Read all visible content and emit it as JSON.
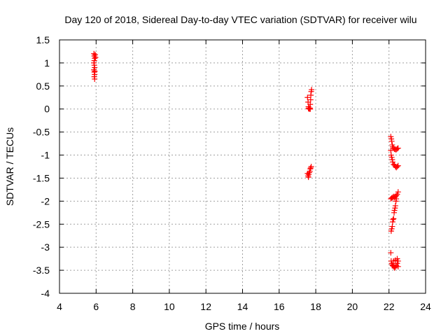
{
  "chart_data": {
    "type": "scatter",
    "title": "Day 120 of 2018, Sidereal Day-to-day VTEC variation (SDTVAR) for receiver wilu",
    "xlabel": "GPS time / hours",
    "ylabel": "SDTVAR / TECUs",
    "xlim": [
      4,
      24
    ],
    "ylim": [
      -4,
      1.5
    ],
    "xticks": [
      4,
      6,
      8,
      10,
      12,
      14,
      16,
      18,
      20,
      22,
      24
    ],
    "xtick_labels": [
      "4",
      "6",
      "8",
      "10",
      "12",
      "14",
      "16",
      "18",
      "20",
      "22",
      "24"
    ],
    "yticks": [
      1.5,
      1,
      0.5,
      0,
      -0.5,
      -1,
      -1.5,
      -2,
      -2.5,
      -3,
      -3.5,
      -4
    ],
    "ytick_labels": [
      "1.5",
      "1",
      "0.5",
      "0",
      "-0.5",
      "-1",
      "-1.5",
      "-2",
      "-2.5",
      "-3",
      "-3.5",
      "-4"
    ],
    "grid": true,
    "marker": "+",
    "marker_color": "#ff0000",
    "points": [
      [
        5.88,
        1.2
      ],
      [
        5.9,
        1.15
      ],
      [
        5.92,
        1.1
      ],
      [
        5.9,
        1.05
      ],
      [
        5.88,
        1.0
      ],
      [
        5.9,
        0.95
      ],
      [
        5.92,
        0.9
      ],
      [
        5.88,
        0.85
      ],
      [
        5.9,
        0.8
      ],
      [
        5.92,
        0.75
      ],
      [
        5.9,
        0.7
      ],
      [
        5.92,
        0.65
      ],
      [
        5.95,
        1.18
      ],
      [
        5.97,
        1.12
      ],
      [
        5.93,
        0.82
      ],
      [
        17.55,
        0.25
      ],
      [
        17.58,
        0.15
      ],
      [
        17.6,
        0.05
      ],
      [
        17.62,
        0.02
      ],
      [
        17.65,
        0.0
      ],
      [
        17.68,
        0.02
      ],
      [
        17.7,
        0.1
      ],
      [
        17.72,
        0.2
      ],
      [
        17.73,
        0.3
      ],
      [
        17.75,
        0.38
      ],
      [
        17.77,
        0.42
      ],
      [
        17.6,
        0.01
      ],
      [
        17.7,
        0.0
      ],
      [
        17.55,
        -1.4
      ],
      [
        17.58,
        -1.45
      ],
      [
        17.6,
        -1.48
      ],
      [
        17.62,
        -1.42
      ],
      [
        17.65,
        -1.38
      ],
      [
        17.68,
        -1.35
      ],
      [
        17.7,
        -1.3
      ],
      [
        17.72,
        -1.28
      ],
      [
        17.75,
        -1.25
      ],
      [
        22.1,
        -0.6
      ],
      [
        22.13,
        -0.65
      ],
      [
        22.15,
        -0.7
      ],
      [
        22.18,
        -0.78
      ],
      [
        22.2,
        -0.82
      ],
      [
        22.25,
        -0.85
      ],
      [
        22.3,
        -0.87
      ],
      [
        22.35,
        -0.88
      ],
      [
        22.4,
        -0.88
      ],
      [
        22.45,
        -0.86
      ],
      [
        22.5,
        -0.85
      ],
      [
        22.1,
        -0.9
      ],
      [
        22.12,
        -1.0
      ],
      [
        22.15,
        -1.05
      ],
      [
        22.18,
        -1.1
      ],
      [
        22.2,
        -1.15
      ],
      [
        22.25,
        -1.2
      ],
      [
        22.3,
        -1.22
      ],
      [
        22.35,
        -1.25
      ],
      [
        22.4,
        -1.27
      ],
      [
        22.45,
        -1.25
      ],
      [
        22.5,
        -1.23
      ],
      [
        22.1,
        -1.95
      ],
      [
        22.15,
        -1.93
      ],
      [
        22.2,
        -1.92
      ],
      [
        22.25,
        -1.9
      ],
      [
        22.3,
        -1.92
      ],
      [
        22.35,
        -1.9
      ],
      [
        22.4,
        -1.88
      ],
      [
        22.45,
        -1.85
      ],
      [
        22.5,
        -1.8
      ],
      [
        22.12,
        -2.65
      ],
      [
        22.15,
        -2.6
      ],
      [
        22.18,
        -2.55
      ],
      [
        22.2,
        -2.45
      ],
      [
        22.22,
        -2.4
      ],
      [
        22.25,
        -2.38
      ],
      [
        22.28,
        -2.25
      ],
      [
        22.3,
        -2.2
      ],
      [
        22.33,
        -2.15
      ],
      [
        22.35,
        -2.1
      ],
      [
        22.38,
        -2.0
      ],
      [
        22.4,
        -1.95
      ],
      [
        22.1,
        -3.12
      ],
      [
        22.12,
        -3.3
      ],
      [
        22.15,
        -3.35
      ],
      [
        22.18,
        -3.38
      ],
      [
        22.2,
        -3.4
      ],
      [
        22.25,
        -3.42
      ],
      [
        22.3,
        -3.45
      ],
      [
        22.35,
        -3.43
      ],
      [
        22.4,
        -3.4
      ],
      [
        22.45,
        -3.35
      ],
      [
        22.5,
        -3.3
      ],
      [
        22.45,
        -3.25
      ],
      [
        22.35,
        -3.28
      ],
      [
        22.25,
        -3.3
      ],
      [
        22.5,
        -3.42
      ]
    ]
  }
}
